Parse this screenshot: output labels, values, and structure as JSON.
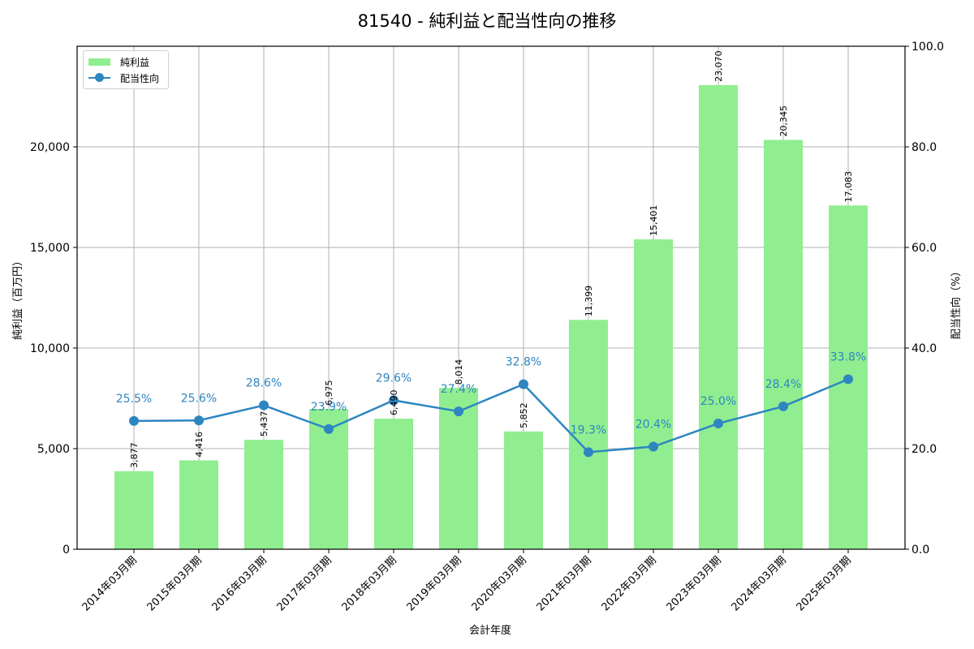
{
  "title": "81540 - 純利益と配当性向の推移",
  "legend": {
    "bar_label": "純利益",
    "line_label": "配当性向"
  },
  "axes": {
    "xlabel": "会計年度",
    "ylabel_left": "純利益（百万円）",
    "ylabel_right": "配当性向（%）",
    "left_ticks": [
      "0",
      "5,000",
      "10,000",
      "15,000",
      "20,000"
    ],
    "right_ticks": [
      "0.0",
      "20.0",
      "40.0",
      "60.0",
      "80.0",
      "100.0"
    ]
  },
  "colors": {
    "bar": "#90ee90",
    "line": "#2e86c1",
    "grid": "#b0b0b0"
  },
  "chart_data": {
    "type": "bar+line",
    "title": "81540 - 純利益と配当性向の推移",
    "xlabel": "会計年度",
    "ylabel": "純利益（百万円）",
    "ylabel_right": "配当性向（%）",
    "categories": [
      "2014年03月期",
      "2015年03月期",
      "2016年03月期",
      "2017年03月期",
      "2018年03月期",
      "2019年03月期",
      "2020年03月期",
      "2021年03月期",
      "2022年03月期",
      "2023年03月期",
      "2024年03月期",
      "2025年03月期"
    ],
    "series": [
      {
        "name": "純利益",
        "type": "bar",
        "axis": "left",
        "values": [
          3877,
          4416,
          5437,
          6975,
          6490,
          8014,
          5852,
          11399,
          15401,
          23070,
          20345,
          17083
        ],
        "labels": [
          "3,877",
          "4,416",
          "5,437",
          "6,975",
          "6,490",
          "8,014",
          "5,852",
          "11,399",
          "15,401",
          "23,070",
          "20,345",
          "17,083"
        ]
      },
      {
        "name": "配当性向",
        "type": "line",
        "axis": "right",
        "values": [
          25.5,
          25.6,
          28.6,
          23.9,
          29.6,
          27.4,
          32.8,
          19.3,
          20.4,
          25.0,
          28.4,
          33.8
        ],
        "labels": [
          "25.5%",
          "25.6%",
          "28.6%",
          "23.9%",
          "29.6%",
          "27.4%",
          "32.8%",
          "19.3%",
          "20.4%",
          "25.0%",
          "28.4%",
          "33.8%"
        ]
      }
    ],
    "ylim": [
      0,
      25000
    ],
    "ylim_right": [
      0,
      100
    ],
    "grid": true,
    "legend_position": "upper left"
  }
}
